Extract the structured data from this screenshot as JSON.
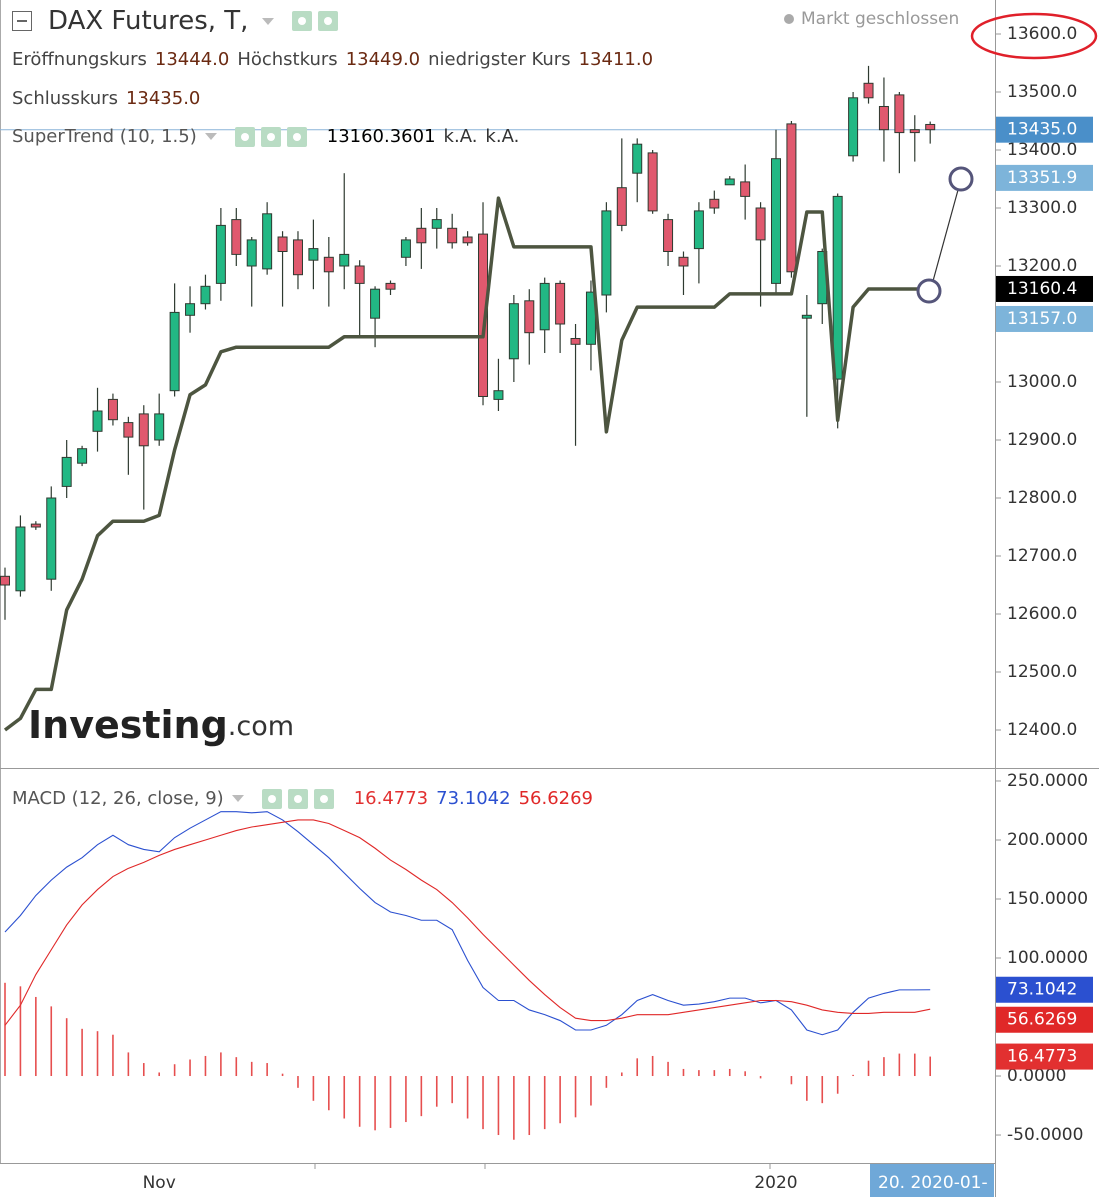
{
  "chart_data": [
    {
      "type": "candlestick",
      "title": "DAX Futures, T,",
      "status": "Markt geschlossen",
      "ohlc_legend": [
        {
          "name": "Eröffnungskurs",
          "value": "13444.0"
        },
        {
          "name": "Höchstkurs",
          "value": "13449.0"
        },
        {
          "name": "niedrigster Kurs",
          "value": "13411.0"
        },
        {
          "name": "Schlusskurs",
          "value": "13435.0"
        }
      ],
      "categories": [
        null,
        null,
        null,
        null,
        null,
        null,
        null,
        null,
        null,
        null,
        "Nov",
        null,
        null,
        null,
        null,
        null,
        null,
        null,
        null,
        null,
        null,
        null,
        null,
        null,
        null,
        null,
        null,
        null,
        null,
        null,
        null,
        null,
        null,
        null,
        null,
        null,
        null,
        null,
        null,
        null,
        null,
        null,
        null,
        null,
        null,
        null,
        null,
        null,
        null,
        null,
        "2020",
        null,
        null,
        null,
        null,
        null,
        null,
        null,
        null,
        null,
        null
      ],
      "open": [
        12665,
        12640,
        12755,
        12660,
        12820,
        12860,
        12915,
        12970,
        12930,
        12945,
        12900,
        12985,
        13115,
        13135,
        13170,
        13280,
        13200,
        13195,
        13250,
        13245,
        13210,
        13215,
        13200,
        13200,
        13110,
        13170,
        13215,
        13265,
        13265,
        13265,
        13250,
        13255,
        12970,
        13040,
        13140,
        13090,
        13170,
        13075,
        13065,
        13150,
        13335,
        13360,
        13395,
        13280,
        13215,
        13230,
        13315,
        13340,
        13345,
        13300,
        13170,
        13445,
        13110,
        13135,
        13005,
        13390,
        13515,
        13475,
        13495,
        13435,
        13444
      ],
      "high": [
        12680,
        12770,
        12760,
        12820,
        12900,
        12890,
        12990,
        12980,
        12940,
        12960,
        12980,
        13170,
        13165,
        13185,
        13300,
        13300,
        13250,
        13310,
        13260,
        13260,
        13280,
        13250,
        13360,
        13210,
        13165,
        13175,
        13250,
        13300,
        13300,
        13290,
        13260,
        13310,
        13040,
        13150,
        13160,
        13180,
        13175,
        13100,
        13175,
        13310,
        13420,
        13420,
        13400,
        13290,
        13225,
        13310,
        13330,
        13355,
        13375,
        13310,
        13435,
        13450,
        13150,
        13230,
        13325,
        13500,
        13545,
        13525,
        13500,
        13460,
        13449
      ],
      "low": [
        12590,
        12630,
        12745,
        12640,
        12800,
        12855,
        12880,
        12925,
        12840,
        12780,
        12890,
        12975,
        13085,
        13125,
        13140,
        13200,
        13130,
        13185,
        13130,
        13160,
        13160,
        13130,
        13160,
        13080,
        13060,
        13150,
        13200,
        13195,
        13230,
        13230,
        13235,
        12960,
        12950,
        13000,
        13030,
        13050,
        13050,
        12890,
        13020,
        13120,
        13260,
        13310,
        13290,
        13200,
        13150,
        13170,
        13290,
        13340,
        13280,
        13130,
        13150,
        13180,
        12940,
        13100,
        12920,
        13380,
        13480,
        13380,
        13360,
        13380,
        13411
      ],
      "close": [
        12650,
        12750,
        12750,
        12800,
        12870,
        12885,
        12950,
        12935,
        12905,
        12890,
        12945,
        13120,
        13135,
        13165,
        13270,
        13220,
        13245,
        13290,
        13225,
        13185,
        13230,
        13190,
        13220,
        13170,
        13160,
        13160,
        13245,
        13240,
        13280,
        13240,
        13240,
        12975,
        12985,
        13135,
        13085,
        13170,
        13100,
        13065,
        13155,
        13295,
        13270,
        13410,
        13295,
        13225,
        13200,
        13295,
        13300,
        13350,
        13320,
        13245,
        13385,
        13190,
        13115,
        13225,
        13320,
        13490,
        13490,
        13435,
        13430,
        13430,
        13435
      ],
      "up_color": "#22b884",
      "down_color": "#e0596e",
      "series": [
        {
          "name": "SuperTrend (10, 1.5)",
          "color": "#4d5540",
          "values": [
            12400,
            12420,
            12470,
            12470,
            12607,
            12660,
            12735,
            12760,
            12760,
            12760,
            12770,
            12883,
            12978,
            12995,
            13052,
            13060,
            13060,
            13060,
            13060,
            13060,
            13060,
            13060,
            13078,
            13078,
            13078,
            13078,
            13078,
            13078,
            13078,
            13078,
            13078,
            13078,
            13317,
            13233,
            13233,
            13233,
            13233,
            13233,
            13233,
            12914,
            13072,
            13129,
            13129,
            13129,
            13129,
            13129,
            13129,
            13152,
            13152,
            13152,
            13152,
            13152,
            13293,
            13293,
            12934,
            13129,
            13160.3601,
            13160.3601,
            13160.3601,
            13160.3601,
            13160.3601
          ]
        }
      ],
      "indicator_values": [
        "13160.3601",
        "k.A.",
        "k.A."
      ],
      "ylim": [
        12334.5,
        13658.6
      ],
      "yticks": [
        {
          "value": 13600,
          "label": "13600.0"
        },
        {
          "value": 13500,
          "label": "13500.0"
        },
        {
          "value": 13400,
          "label": "13400.0"
        },
        {
          "value": 13300,
          "label": "13300.0"
        },
        {
          "value": 13200,
          "label": "13200.0"
        },
        {
          "value": 13000,
          "label": "13000.0"
        },
        {
          "value": 12900,
          "label": "12900.0"
        },
        {
          "value": 12800,
          "label": "12800.0"
        },
        {
          "value": 12700,
          "label": "12700.0"
        },
        {
          "value": 12600,
          "label": "12600.0"
        },
        {
          "value": 12500,
          "label": "12500.0"
        },
        {
          "value": 12400,
          "label": "12400.0"
        }
      ],
      "price_markers": [
        {
          "value": 13435,
          "label": "13435.0",
          "color": "#4a8fc9"
        },
        {
          "value": 13351.9,
          "label": "13351.9",
          "color": "#7db4da"
        },
        {
          "value": 13160.4,
          "label": "13160.4",
          "color": "#000000"
        },
        {
          "value": 13157,
          "label": "13157.0",
          "color": "#7db4da"
        }
      ],
      "crosshair_label": "20. 2020-01-",
      "watermark": [
        "Investing",
        ".com"
      ]
    },
    {
      "type": "macd",
      "title": "MACD (12, 26, close, 9)",
      "series": [
        {
          "color": "#2b50d0",
          "values": [
            122,
            136,
            153,
            166,
            177,
            185,
            196,
            204,
            196,
            192,
            190,
            202,
            210,
            217,
            224,
            224,
            223,
            224,
            217,
            207,
            196,
            185,
            172,
            159,
            147,
            139,
            136,
            132,
            132,
            124,
            98,
            75,
            64,
            64,
            56,
            52,
            47,
            39,
            39,
            43,
            52,
            64,
            69,
            64,
            60,
            61,
            63,
            66,
            66,
            62,
            64,
            56,
            39,
            35,
            39,
            54,
            66,
            70,
            73,
            73,
            73.1042
          ]
        },
        {
          "color": "#e02828",
          "values": [
            43,
            60,
            86,
            107,
            128,
            145,
            158,
            169,
            176,
            181,
            187,
            192,
            196,
            200,
            204,
            208,
            211,
            213,
            215,
            217,
            217,
            214,
            208,
            202,
            193,
            183,
            175,
            166,
            158,
            147,
            134,
            120,
            107,
            94,
            81,
            69,
            58,
            49,
            47,
            47,
            49,
            52,
            52,
            52,
            54,
            56,
            58,
            60,
            62,
            64,
            64,
            63,
            60,
            56,
            54,
            53,
            53,
            54,
            54,
            54,
            56.6269
          ]
        },
        {
          "color": "#e23030",
          "kind": "histogram",
          "values": [
            79,
            76,
            67,
            59,
            49,
            40,
            38,
            35,
            20,
            11,
            3,
            10,
            14,
            17,
            20,
            16,
            12,
            11,
            2,
            -10,
            -21,
            -29,
            -36,
            -43,
            -46,
            -44,
            -39,
            -34,
            -26,
            -23,
            -36,
            -45,
            -50,
            -54,
            -50,
            -45,
            -40,
            -35,
            -25,
            -10,
            3,
            15,
            17,
            12,
            6,
            5,
            5,
            6,
            4,
            -2,
            0,
            -7,
            -21,
            -23,
            -15,
            1,
            13,
            16,
            19,
            19,
            16.4773
          ]
        }
      ],
      "ylim": [
        -73.7,
        261
      ],
      "yticks": [
        {
          "value": 250,
          "label": "250.0000"
        },
        {
          "value": 200,
          "label": "200.0000"
        },
        {
          "value": 150,
          "label": "150.0000"
        },
        {
          "value": 100,
          "label": "100.0000"
        },
        {
          "value": 0,
          "label": "0.0000"
        },
        {
          "value": -50,
          "label": "-50.0000"
        }
      ]
    }
  ]
}
